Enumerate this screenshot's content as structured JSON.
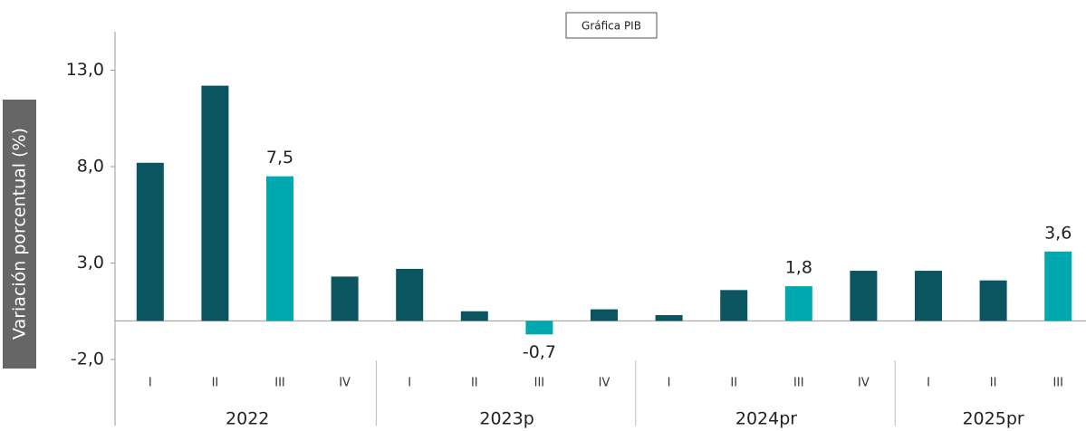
{
  "chart_data": {
    "type": "bar",
    "button": "Gráfica PIB",
    "y_label": "Variación porcentual (%)",
    "groups": [
      {
        "label": "2022",
        "categories": [
          "I",
          "II",
          "III",
          "IV"
        ]
      },
      {
        "label": "2023p",
        "categories": [
          "I",
          "II",
          "III",
          "IV"
        ]
      },
      {
        "label": "2024pr",
        "categories": [
          "I",
          "II",
          "III",
          "IV"
        ]
      },
      {
        "label": "2025pr",
        "categories": [
          "I",
          "II",
          "III"
        ]
      }
    ],
    "values": [
      8.2,
      12.2,
      7.5,
      2.3,
      2.7,
      0.5,
      -0.7,
      0.6,
      0.3,
      1.6,
      1.8,
      2.6,
      2.6,
      2.1,
      3.6
    ],
    "value_labels": [
      null,
      null,
      "7,5",
      null,
      null,
      null,
      "-0,7",
      null,
      null,
      null,
      "1,8",
      null,
      null,
      null,
      "3,6"
    ],
    "colors": [
      "#0b5560",
      "#0b5560",
      "#00a9b0",
      "#0b5560",
      "#0b5560",
      "#0b5560",
      "#00a9b0",
      "#0b5560",
      "#0b5560",
      "#0b5560",
      "#00a9b0",
      "#0b5560",
      "#0b5560",
      "#0b5560",
      "#00a9b0"
    ],
    "ylim": [
      -2.0,
      15.0
    ],
    "yticks": [
      {
        "value": -2.0,
        "label": "-2,0"
      },
      {
        "value": 3.0,
        "label": "3,0"
      },
      {
        "value": 8.0,
        "label": "8,0"
      },
      {
        "value": 13.0,
        "label": "13,0"
      }
    ],
    "grid": false
  }
}
